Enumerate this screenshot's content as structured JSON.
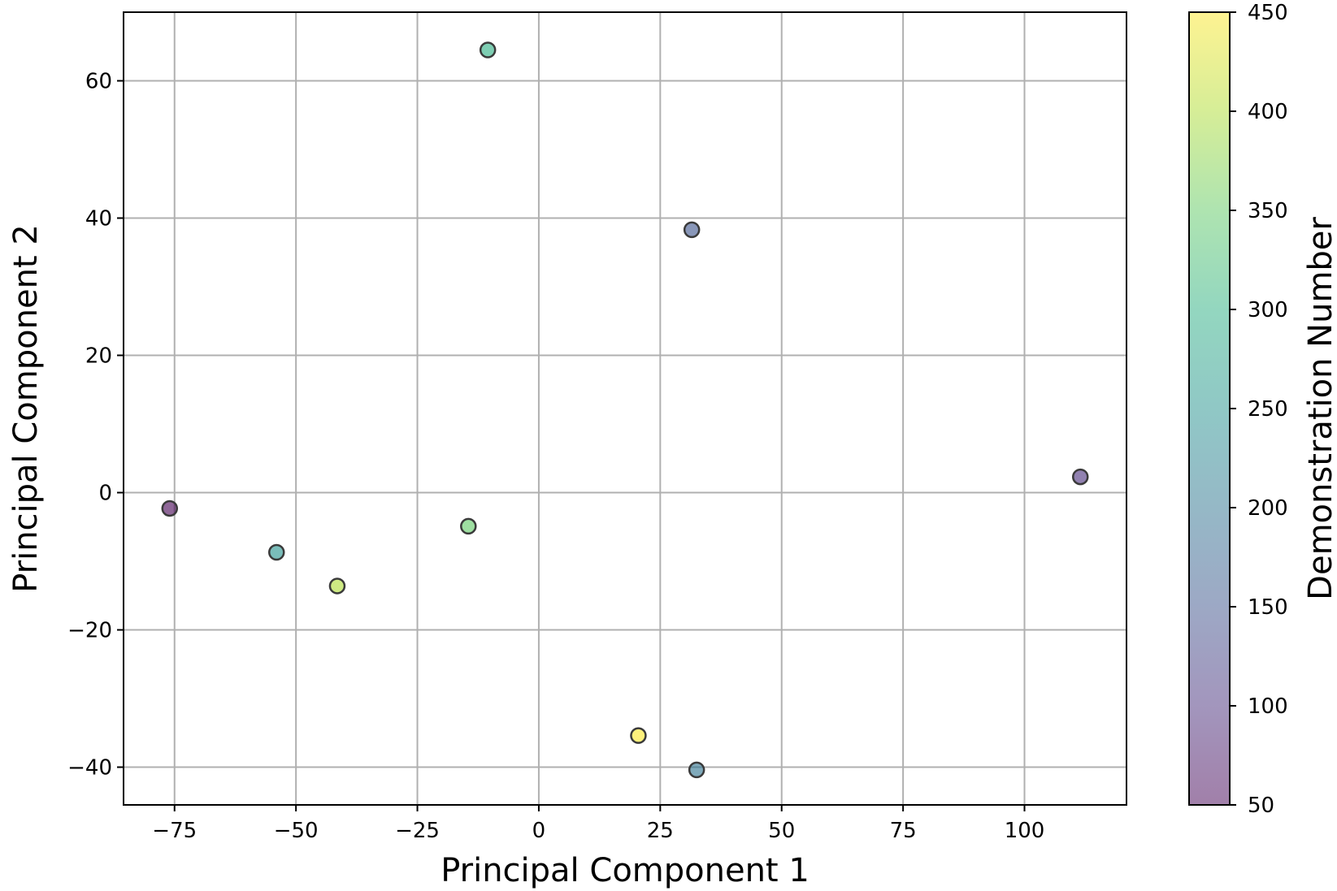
{
  "chart_data": {
    "type": "scatter",
    "title": "",
    "xlabel": "Principal Component 1",
    "ylabel": "Principal Component 2",
    "xlim": [
      -85.5,
      121
    ],
    "ylim": [
      -45.5,
      70
    ],
    "xticks": [
      -75,
      -50,
      -25,
      0,
      25,
      50,
      75,
      100
    ],
    "xtick_labels": [
      "−75",
      "−50",
      "−25",
      "0",
      "25",
      "50",
      "75",
      "100"
    ],
    "yticks": [
      -40,
      -20,
      0,
      20,
      40,
      60
    ],
    "ytick_labels": [
      "−40",
      "−20",
      "0",
      "20",
      "40",
      "60"
    ],
    "grid": true,
    "colormap": "viridis",
    "colorbar": {
      "label": "Demonstration Number",
      "range": [
        50,
        450
      ],
      "ticks": [
        50,
        100,
        150,
        200,
        250,
        300,
        350,
        400,
        450
      ],
      "tick_labels": [
        "50",
        "100",
        "150",
        "200",
        "250",
        "300",
        "350",
        "400",
        "450"
      ]
    },
    "points": [
      {
        "x": -76,
        "y": -2.3,
        "c": 50
      },
      {
        "x": -54,
        "y": -8.7,
        "c": 250
      },
      {
        "x": -41.5,
        "y": -13.6,
        "c": 400
      },
      {
        "x": -14.5,
        "y": -4.9,
        "c": 350
      },
      {
        "x": -10.5,
        "y": 64.5,
        "c": 300
      },
      {
        "x": 31.5,
        "y": 38.3,
        "c": 150
      },
      {
        "x": 20.5,
        "y": -35.4,
        "c": 450
      },
      {
        "x": 32.5,
        "y": -40.4,
        "c": 200
      },
      {
        "x": 111.5,
        "y": 2.3,
        "c": 100
      }
    ]
  }
}
